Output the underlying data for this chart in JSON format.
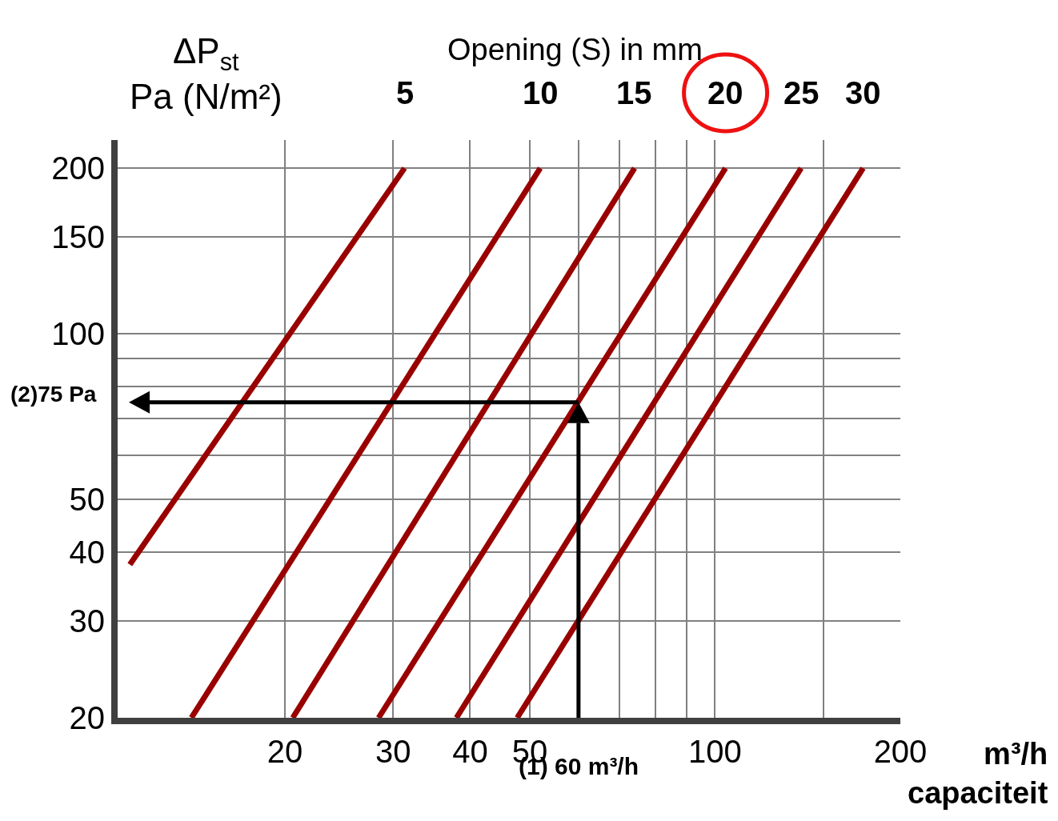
{
  "chart_data": {
    "type": "line",
    "xlabel": "m³/h\ncapaciteit",
    "ylabel": "ΔP$_{st}$\nPa (N/m²)",
    "log": "xy",
    "xlim": [
      10.7,
      200
    ],
    "xticks": [
      20,
      30,
      40,
      50,
      {
        "value": 60,
        "label": null
      },
      {
        "value": 70,
        "label": null
      },
      {
        "value": 80,
        "label": null
      },
      {
        "value": 90,
        "label": null
      },
      100,
      {
        "value": 150,
        "label": null
      },
      200
    ],
    "ylim": [
      20,
      225
    ],
    "yticks": [
      20,
      30,
      40,
      50,
      {
        "value": 60,
        "label": null
      },
      {
        "value": 70,
        "label": null
      },
      {
        "value": 80,
        "label": null
      },
      {
        "value": 90,
        "label": null
      },
      100,
      150,
      200
    ],
    "grid": true,
    "legend": false,
    "marker": "none",
    "line_style": "solid",
    "series": [
      {
        "name": "5",
        "color": "#990000",
        "x": [
          11.2,
          31.3
        ],
        "values": [
          38,
          200
        ]
      },
      {
        "name": "10",
        "color": "#990000",
        "x": [
          14.1,
          52
        ],
        "values": [
          20,
          200
        ]
      },
      {
        "name": "15",
        "color": "#990000",
        "x": [
          20.6,
          74
        ],
        "values": [
          20,
          200
        ]
      },
      {
        "name": "20",
        "color": "#990000",
        "x": [
          28.4,
          104
        ],
        "values": [
          20,
          200
        ]
      },
      {
        "name": "25",
        "color": "#990000",
        "x": [
          38,
          138
        ],
        "values": [
          20,
          200
        ]
      },
      {
        "name": "30",
        "color": "#990000",
        "x": [
          47.7,
          174
        ],
        "values": [
          20,
          200
        ]
      }
    ],
    "annotations": [
      "Opening (S) in mm"
    ],
    "ref_lines": [
      {
        "axis": "x",
        "value": 60,
        "label": "(1) 60 m³/h",
        "color": "#000000"
      },
      {
        "axis": "y",
        "value": 75,
        "label": "(2)75 Pa",
        "color": "#000000"
      }
    ]
  }
}
